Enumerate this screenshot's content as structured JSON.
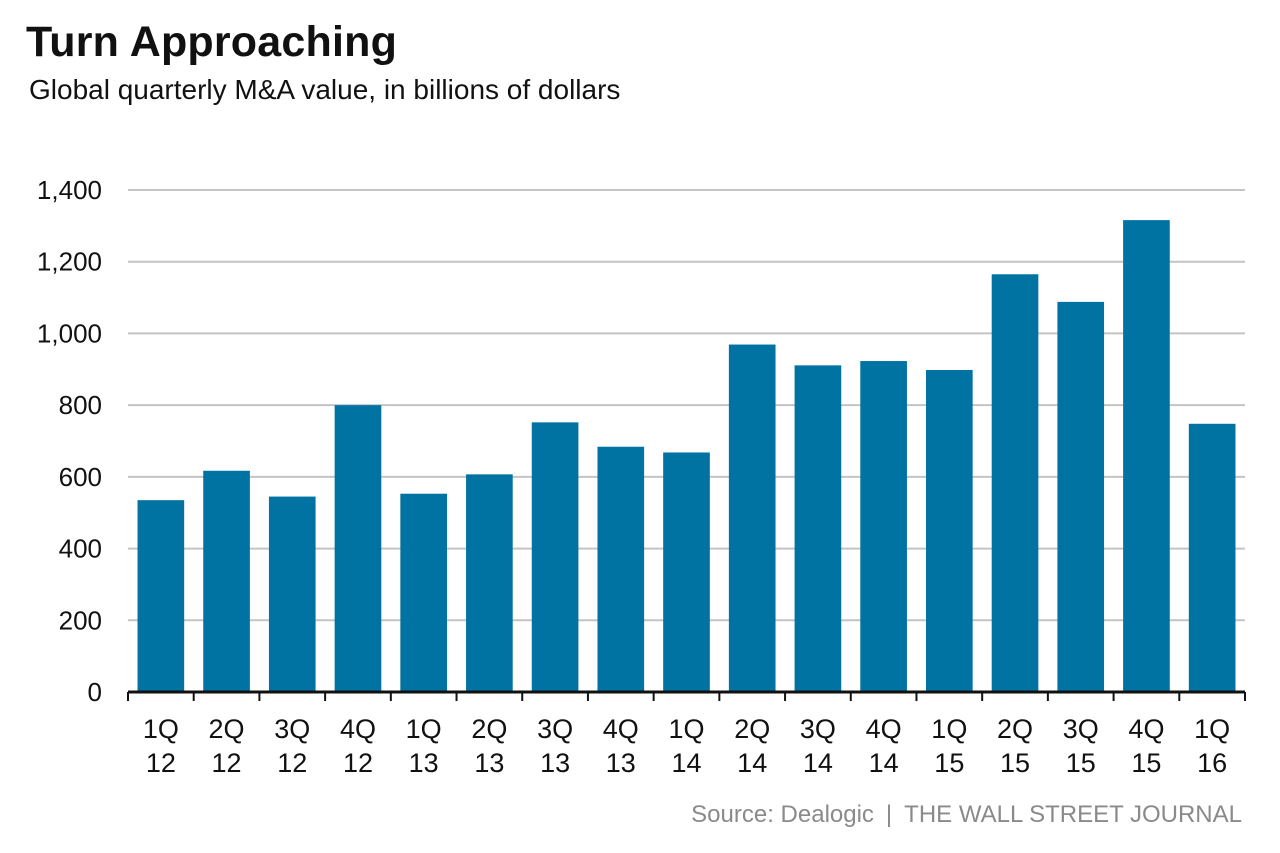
{
  "title": "Turn Approaching",
  "subtitle": "Global quarterly M&A value, in billions of dollars",
  "source": {
    "credit": "Source: Dealogic",
    "separator": "|",
    "publisher": "THE WALL STREET JOURNAL"
  },
  "colors": {
    "bar": "#0073a2",
    "grid": "#c4c4c4",
    "axis": "#111111",
    "text": "#111111",
    "source": "#8a8a8a"
  },
  "chart_data": {
    "type": "bar",
    "title": "Turn Approaching",
    "subtitle": "Global quarterly M&A value, in billions of dollars",
    "xlabel": "",
    "ylabel": "",
    "ylim": [
      0,
      1400
    ],
    "yticks": [
      0,
      200,
      400,
      600,
      800,
      1000,
      1200,
      1400
    ],
    "ytick_labels": [
      "0",
      "200",
      "400",
      "600",
      "800",
      "1,000",
      "1,200",
      "1,400"
    ],
    "grid": true,
    "legend": "none",
    "categories": [
      [
        "1Q",
        "12"
      ],
      [
        "2Q",
        "12"
      ],
      [
        "3Q",
        "12"
      ],
      [
        "4Q",
        "12"
      ],
      [
        "1Q",
        "13"
      ],
      [
        "2Q",
        "13"
      ],
      [
        "3Q",
        "13"
      ],
      [
        "4Q",
        "13"
      ],
      [
        "1Q",
        "14"
      ],
      [
        "2Q",
        "14"
      ],
      [
        "3Q",
        "14"
      ],
      [
        "4Q",
        "14"
      ],
      [
        "1Q",
        "15"
      ],
      [
        "2Q",
        "15"
      ],
      [
        "3Q",
        "15"
      ],
      [
        "4Q",
        "15"
      ],
      [
        "1Q",
        "16"
      ]
    ],
    "values": [
      535,
      617,
      545,
      800,
      553,
      607,
      752,
      684,
      668,
      969,
      911,
      923,
      898,
      1165,
      1088,
      1316,
      748
    ]
  }
}
